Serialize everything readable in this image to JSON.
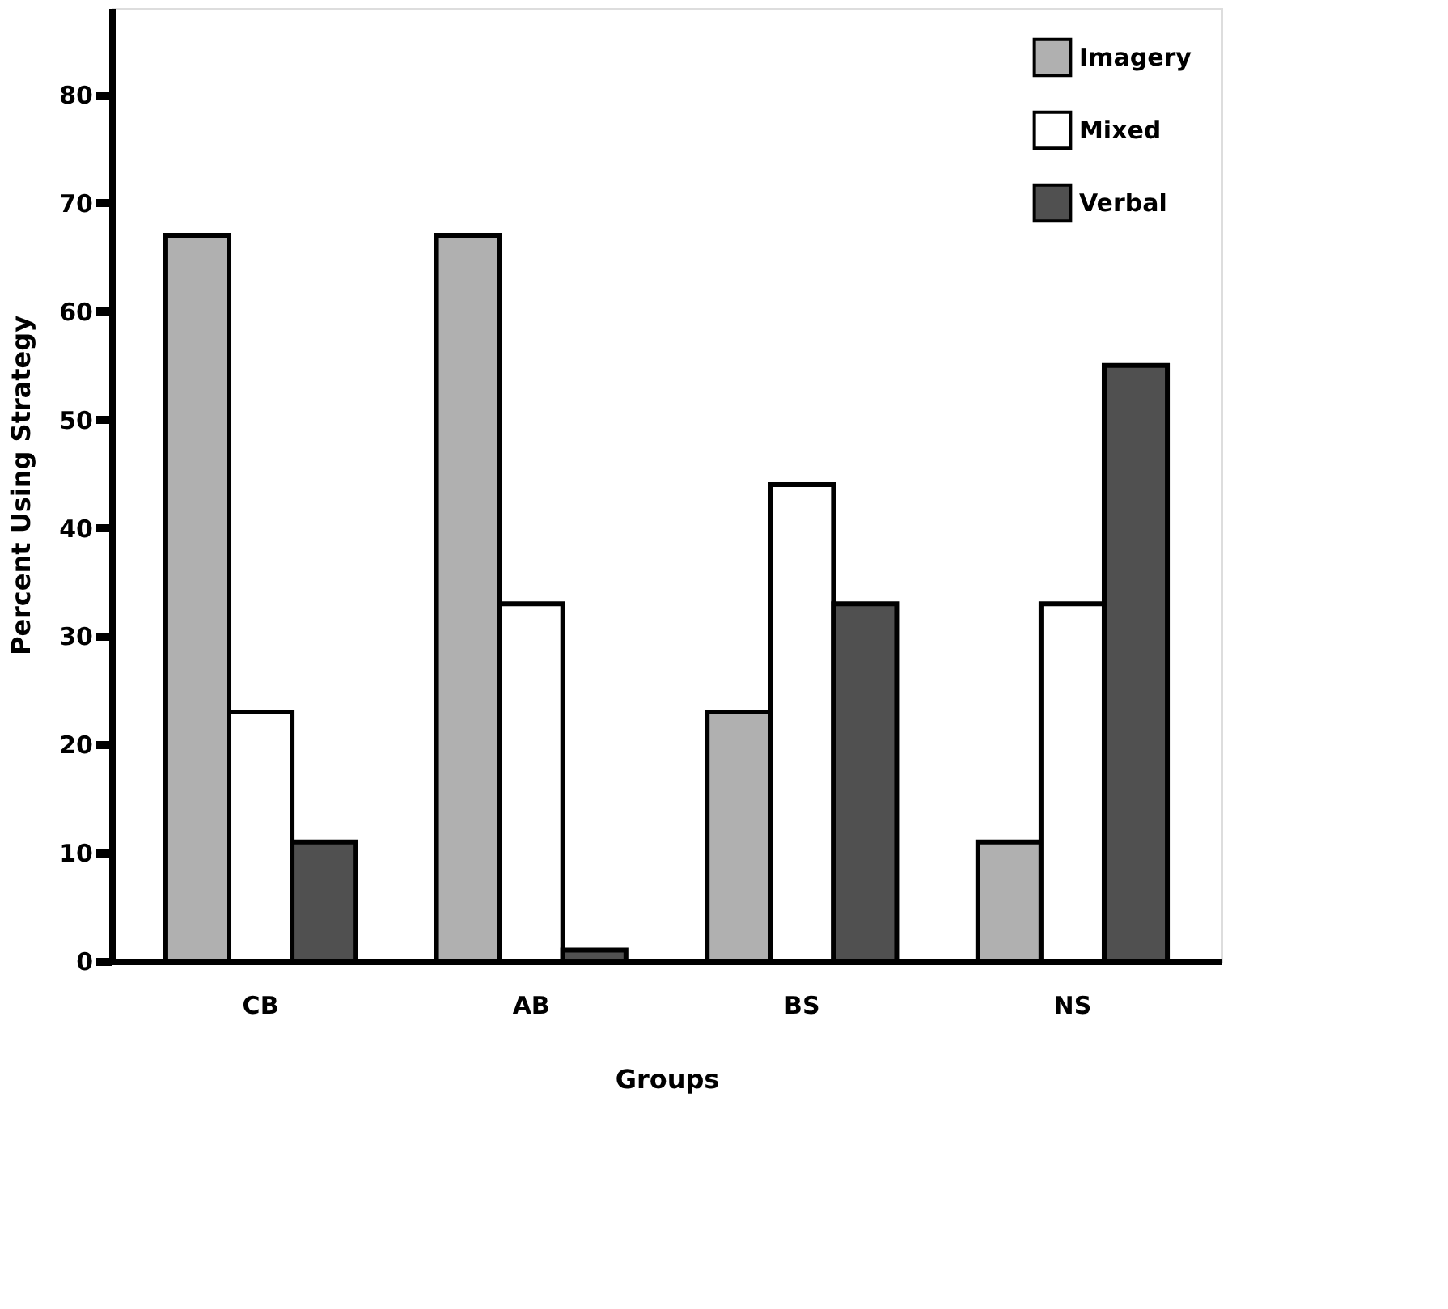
{
  "chart_data": {
    "type": "bar",
    "xlabel": "Groups",
    "ylabel": "Percent Using Strategy",
    "categories": [
      "CB",
      "AB",
      "BS",
      "NS"
    ],
    "series": [
      {
        "name": "Imagery",
        "color": "#b0b0b0",
        "values": [
          67,
          67,
          23,
          11
        ]
      },
      {
        "name": "Mixed",
        "color": "#ffffff",
        "values": [
          23,
          33,
          44,
          33
        ]
      },
      {
        "name": "Verbal",
        "color": "#505050",
        "values": [
          11,
          1,
          33,
          55
        ]
      }
    ],
    "ylim": [
      0,
      88
    ],
    "yticks": [
      0,
      10,
      20,
      30,
      40,
      50,
      60,
      70,
      80
    ],
    "grid": false,
    "legend": "top right"
  }
}
